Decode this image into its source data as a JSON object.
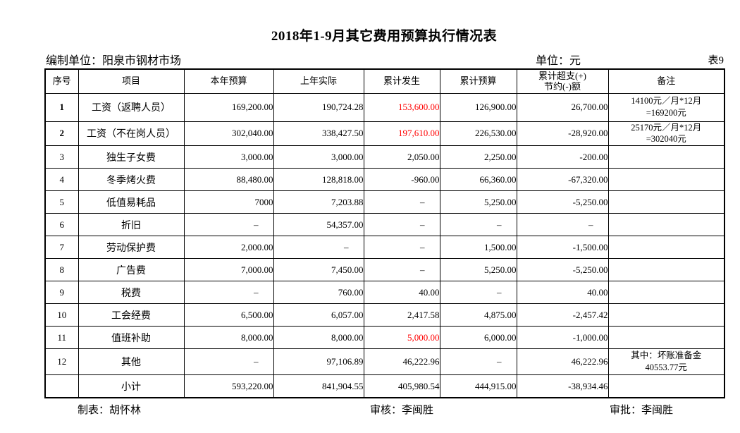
{
  "page": {
    "title": "2018年1-9月其它费用预算执行情况表",
    "prepared_by": "编制单位：阳泉市钢材市场",
    "unit": "单位：元",
    "sheet_no": "表9",
    "footer": {
      "preparer": "制表：胡怀林",
      "reviewer": "审核：李闽胜",
      "approver": "审批：李闽胜"
    },
    "colors": {
      "text": "#000000",
      "highlight_red": "#ff0000"
    }
  },
  "table": {
    "headers": [
      "序号",
      "项目",
      "本年预算",
      "上年实际",
      "累计发生",
      "累计预算",
      "累计超支(+)\n节约(-)额",
      "备注"
    ],
    "rows": [
      {
        "no": "1",
        "bold_no": true,
        "item": "工资（返聘人员）",
        "this_year_budget": "169,200.00",
        "last_year_actual": "190,724.28",
        "cumulative_actual": "153,600.00",
        "cumulative_budget": "126,900.00",
        "over_save": "26,700.00",
        "remark": "14100元／月*12月\n=169200元",
        "red": [
          "cumulative_actual"
        ]
      },
      {
        "no": "2",
        "bold_no": true,
        "item": "工资（不在岗人员）",
        "this_year_budget": "302,040.00",
        "last_year_actual": "338,427.50",
        "cumulative_actual": "197,610.00",
        "cumulative_budget": "226,530.00",
        "over_save": "-28,920.00",
        "remark": "25170元／月*12月\n=302040元",
        "red": [
          "cumulative_actual"
        ]
      },
      {
        "no": "3",
        "bold_no": false,
        "item": "独生子女费",
        "this_year_budget": "3,000.00",
        "last_year_actual": "3,000.00",
        "cumulative_actual": "2,050.00",
        "cumulative_budget": "2,250.00",
        "over_save": "-200.00",
        "remark": "",
        "red": []
      },
      {
        "no": "4",
        "bold_no": false,
        "item": "冬季烤火费",
        "this_year_budget": "88,480.00",
        "last_year_actual": "128,818.00",
        "cumulative_actual": "-960.00",
        "cumulative_budget": "66,360.00",
        "over_save": "-67,320.00",
        "remark": "",
        "red": []
      },
      {
        "no": "5",
        "bold_no": false,
        "item": "低值易耗品",
        "this_year_budget": "7000",
        "last_year_actual": "7,203.88",
        "cumulative_actual": "–",
        "cumulative_budget": "5,250.00",
        "over_save": "-5,250.00",
        "remark": "",
        "red": []
      },
      {
        "no": "6",
        "bold_no": false,
        "item": "折旧",
        "this_year_budget": "–",
        "last_year_actual": "54,357.00",
        "cumulative_actual": "–",
        "cumulative_budget": "–",
        "over_save": "–",
        "remark": "",
        "red": []
      },
      {
        "no": "7",
        "bold_no": false,
        "item": "劳动保护费",
        "this_year_budget": "2,000.00",
        "last_year_actual": "–",
        "cumulative_actual": "–",
        "cumulative_budget": "1,500.00",
        "over_save": "-1,500.00",
        "remark": "",
        "red": []
      },
      {
        "no": "8",
        "bold_no": false,
        "item": "广告费",
        "this_year_budget": "7,000.00",
        "last_year_actual": "7,450.00",
        "cumulative_actual": "–",
        "cumulative_budget": "5,250.00",
        "over_save": "-5,250.00",
        "remark": "",
        "red": []
      },
      {
        "no": "9",
        "bold_no": false,
        "item": "税费",
        "this_year_budget": "–",
        "last_year_actual": "760.00",
        "cumulative_actual": "40.00",
        "cumulative_budget": "–",
        "over_save": "40.00",
        "remark": "",
        "red": []
      },
      {
        "no": "10",
        "bold_no": false,
        "item": "工会经费",
        "this_year_budget": "6,500.00",
        "last_year_actual": "6,057.00",
        "cumulative_actual": "2,417.58",
        "cumulative_budget": "4,875.00",
        "over_save": "-2,457.42",
        "remark": "",
        "red": []
      },
      {
        "no": "11",
        "bold_no": false,
        "item": "值班补助",
        "this_year_budget": "8,000.00",
        "last_year_actual": "8,000.00",
        "cumulative_actual": "5,000.00",
        "cumulative_budget": "6,000.00",
        "over_save": "-1,000.00",
        "remark": "",
        "red": [
          "cumulative_actual"
        ]
      },
      {
        "no": "12",
        "bold_no": false,
        "item": "其他",
        "this_year_budget": "–",
        "last_year_actual": "97,106.89",
        "cumulative_actual": "46,222.96",
        "cumulative_budget": "–",
        "over_save": "46,222.96",
        "remark": "其中：坏账准备金\n40553.77元",
        "red": []
      },
      {
        "no": "",
        "bold_no": false,
        "item": "小计",
        "this_year_budget": "593,220.00",
        "last_year_actual": "841,904.55",
        "cumulative_actual": "405,980.54",
        "cumulative_budget": "444,915.00",
        "over_save": "-38,934.46",
        "remark": "",
        "red": []
      }
    ]
  }
}
